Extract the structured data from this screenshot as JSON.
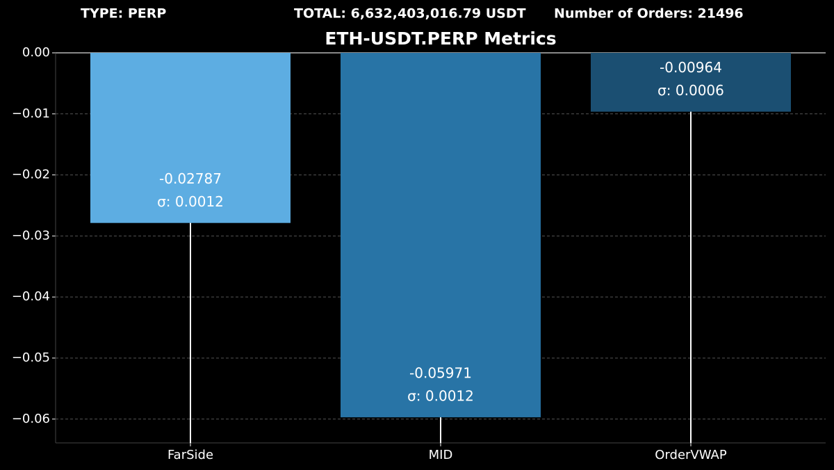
{
  "chart_data": {
    "type": "bar",
    "header": [
      "TYPE: PERP",
      "TOTAL: 6,632,403,016.79 USDT",
      "Number of Orders: 21496"
    ],
    "title": "ETH-USDT.PERP Metrics",
    "categories": [
      "FarSide",
      "MID",
      "OrderVWAP"
    ],
    "values": [
      -0.02787,
      -0.05971,
      -0.00964
    ],
    "errors": [
      0.0012,
      0.0012,
      0.0006
    ],
    "error_labels": [
      "σ: 0.0012",
      "σ: 0.0012",
      "σ: 0.0006"
    ],
    "colors": [
      "#5dade2",
      "#2874a6",
      "#1b4f72"
    ],
    "ylim": [
      -0.0639,
      0.0
    ],
    "yticks": [
      {
        "value": 0,
        "label": "0.00"
      },
      {
        "value": -0.01,
        "label": "−0.01"
      },
      {
        "value": -0.02,
        "label": "−0.02"
      },
      {
        "value": -0.03,
        "label": "−0.03"
      },
      {
        "value": -0.04,
        "label": "−0.04"
      },
      {
        "value": -0.05,
        "label": "−0.05"
      },
      {
        "value": -0.06,
        "label": "−0.06"
      }
    ],
    "grid": true
  }
}
